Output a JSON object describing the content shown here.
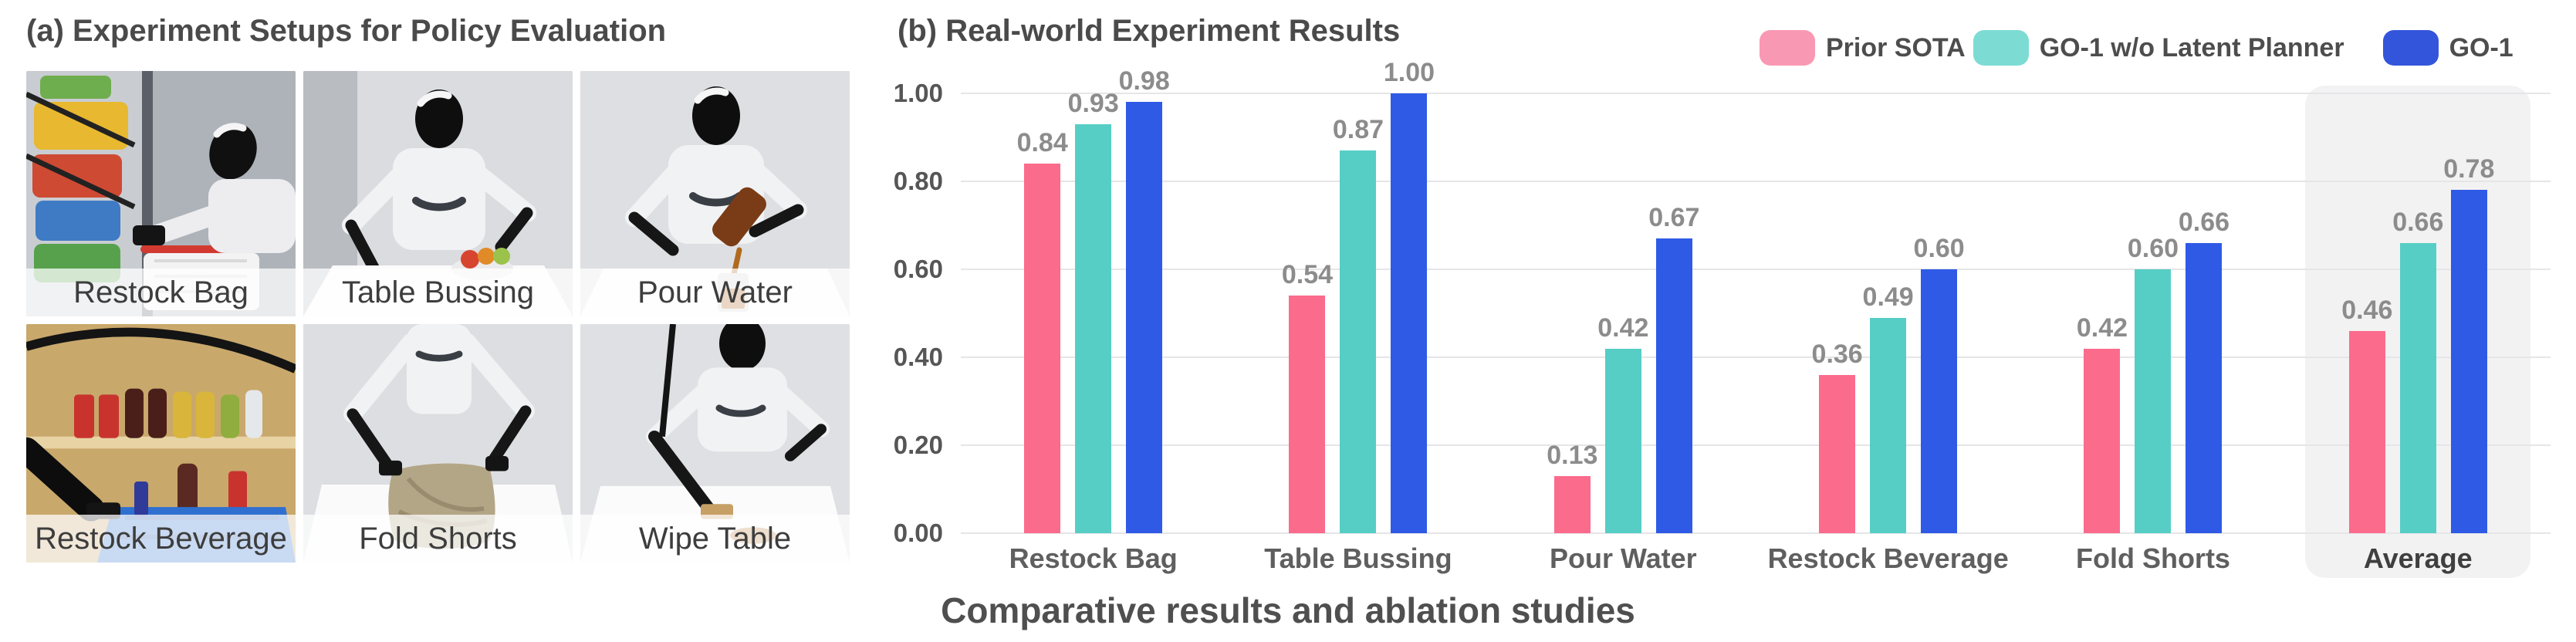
{
  "panel_a": {
    "title": "(a) Experiment Setups for Policy Evaluation",
    "photos": [
      {
        "label": "Restock Bag"
      },
      {
        "label": "Table Bussing"
      },
      {
        "label": "Pour Water"
      },
      {
        "label": "Restock Beverage"
      },
      {
        "label": "Fold Shorts"
      },
      {
        "label": "Wipe Table"
      }
    ]
  },
  "panel_b": {
    "title": "(b) Real-world Experiment Results",
    "caption": "Comparative results and ablation studies"
  },
  "chart_data": {
    "type": "bar",
    "title": "(b) Real-world Experiment Results",
    "categories": [
      "Restock Bag",
      "Table Bussing",
      "Pour Water",
      "Restock Beverage",
      "Fold Shorts",
      "Average"
    ],
    "series": [
      {
        "name": "Prior SOTA",
        "color": "#FB6B8C",
        "legend_color": "#F998B3",
        "values": [
          0.84,
          0.54,
          0.13,
          0.36,
          0.42,
          0.46
        ]
      },
      {
        "name": "GO-1 w/o Latent Planner",
        "color": "#57CEC5",
        "legend_color": "#7CDCD4",
        "values": [
          0.93,
          0.87,
          0.42,
          0.49,
          0.6,
          0.66
        ]
      },
      {
        "name": "GO-1",
        "color": "#2F5AE6",
        "legend_color": "#3355DC",
        "values": [
          0.98,
          1.0,
          0.67,
          0.6,
          0.66,
          0.78
        ]
      }
    ],
    "ylim": [
      0,
      1
    ],
    "yticks": [
      "0.00",
      "0.20",
      "0.40",
      "0.60",
      "0.80",
      "1.00"
    ],
    "grid": true,
    "legend_position": "top-right",
    "highlight_category": "Average",
    "value_label_decimals": 2
  },
  "colors": {
    "background": "#ffffff",
    "gridline": "#e6e6e8",
    "axis_tick_label": "#565656",
    "value_label": "#8c8c8c",
    "category_label": "#5f5f5f",
    "title_text": "#4a4a4a",
    "caption_text": "#4f4f4f",
    "highlight_panel": "#f2f2f3",
    "photo_label_text": "#3d3d3d"
  }
}
